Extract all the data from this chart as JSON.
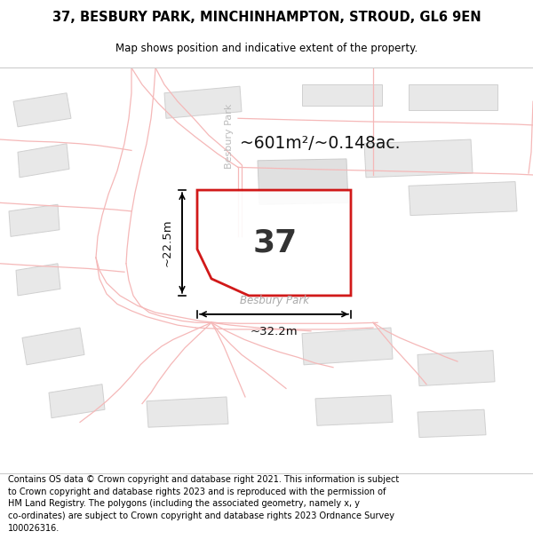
{
  "title_line1": "37, BESBURY PARK, MINCHINHAMPTON, STROUD, GL6 9EN",
  "title_line2": "Map shows position and indicative extent of the property.",
  "footer_line1": "Contains OS data © Crown copyright and database right 2021. This information is subject",
  "footer_line2": "to Crown copyright and database rights 2023 and is reproduced with the permission of",
  "footer_line3": "HM Land Registry. The polygons (including the associated geometry, namely x, y",
  "footer_line4": "co-ordinates) are subject to Crown copyright and database rights 2023 Ordnance Survey",
  "footer_line5": "100026316.",
  "bg_color": "#ffffff",
  "map_bg": "#ffffff",
  "road_line_color": "#f5b8b8",
  "building_fill": "#e8e8e8",
  "building_stroke": "#d0d0d0",
  "plot_stroke": "#cc0000",
  "plot_fill": "#ffffff",
  "plot_label": "37",
  "area_label": "~601m²/~0.148ac.",
  "width_label": "~32.2m",
  "height_label": "~22.5m",
  "road_label": "Besbury Park",
  "road_label_vert": "Besbury Park"
}
